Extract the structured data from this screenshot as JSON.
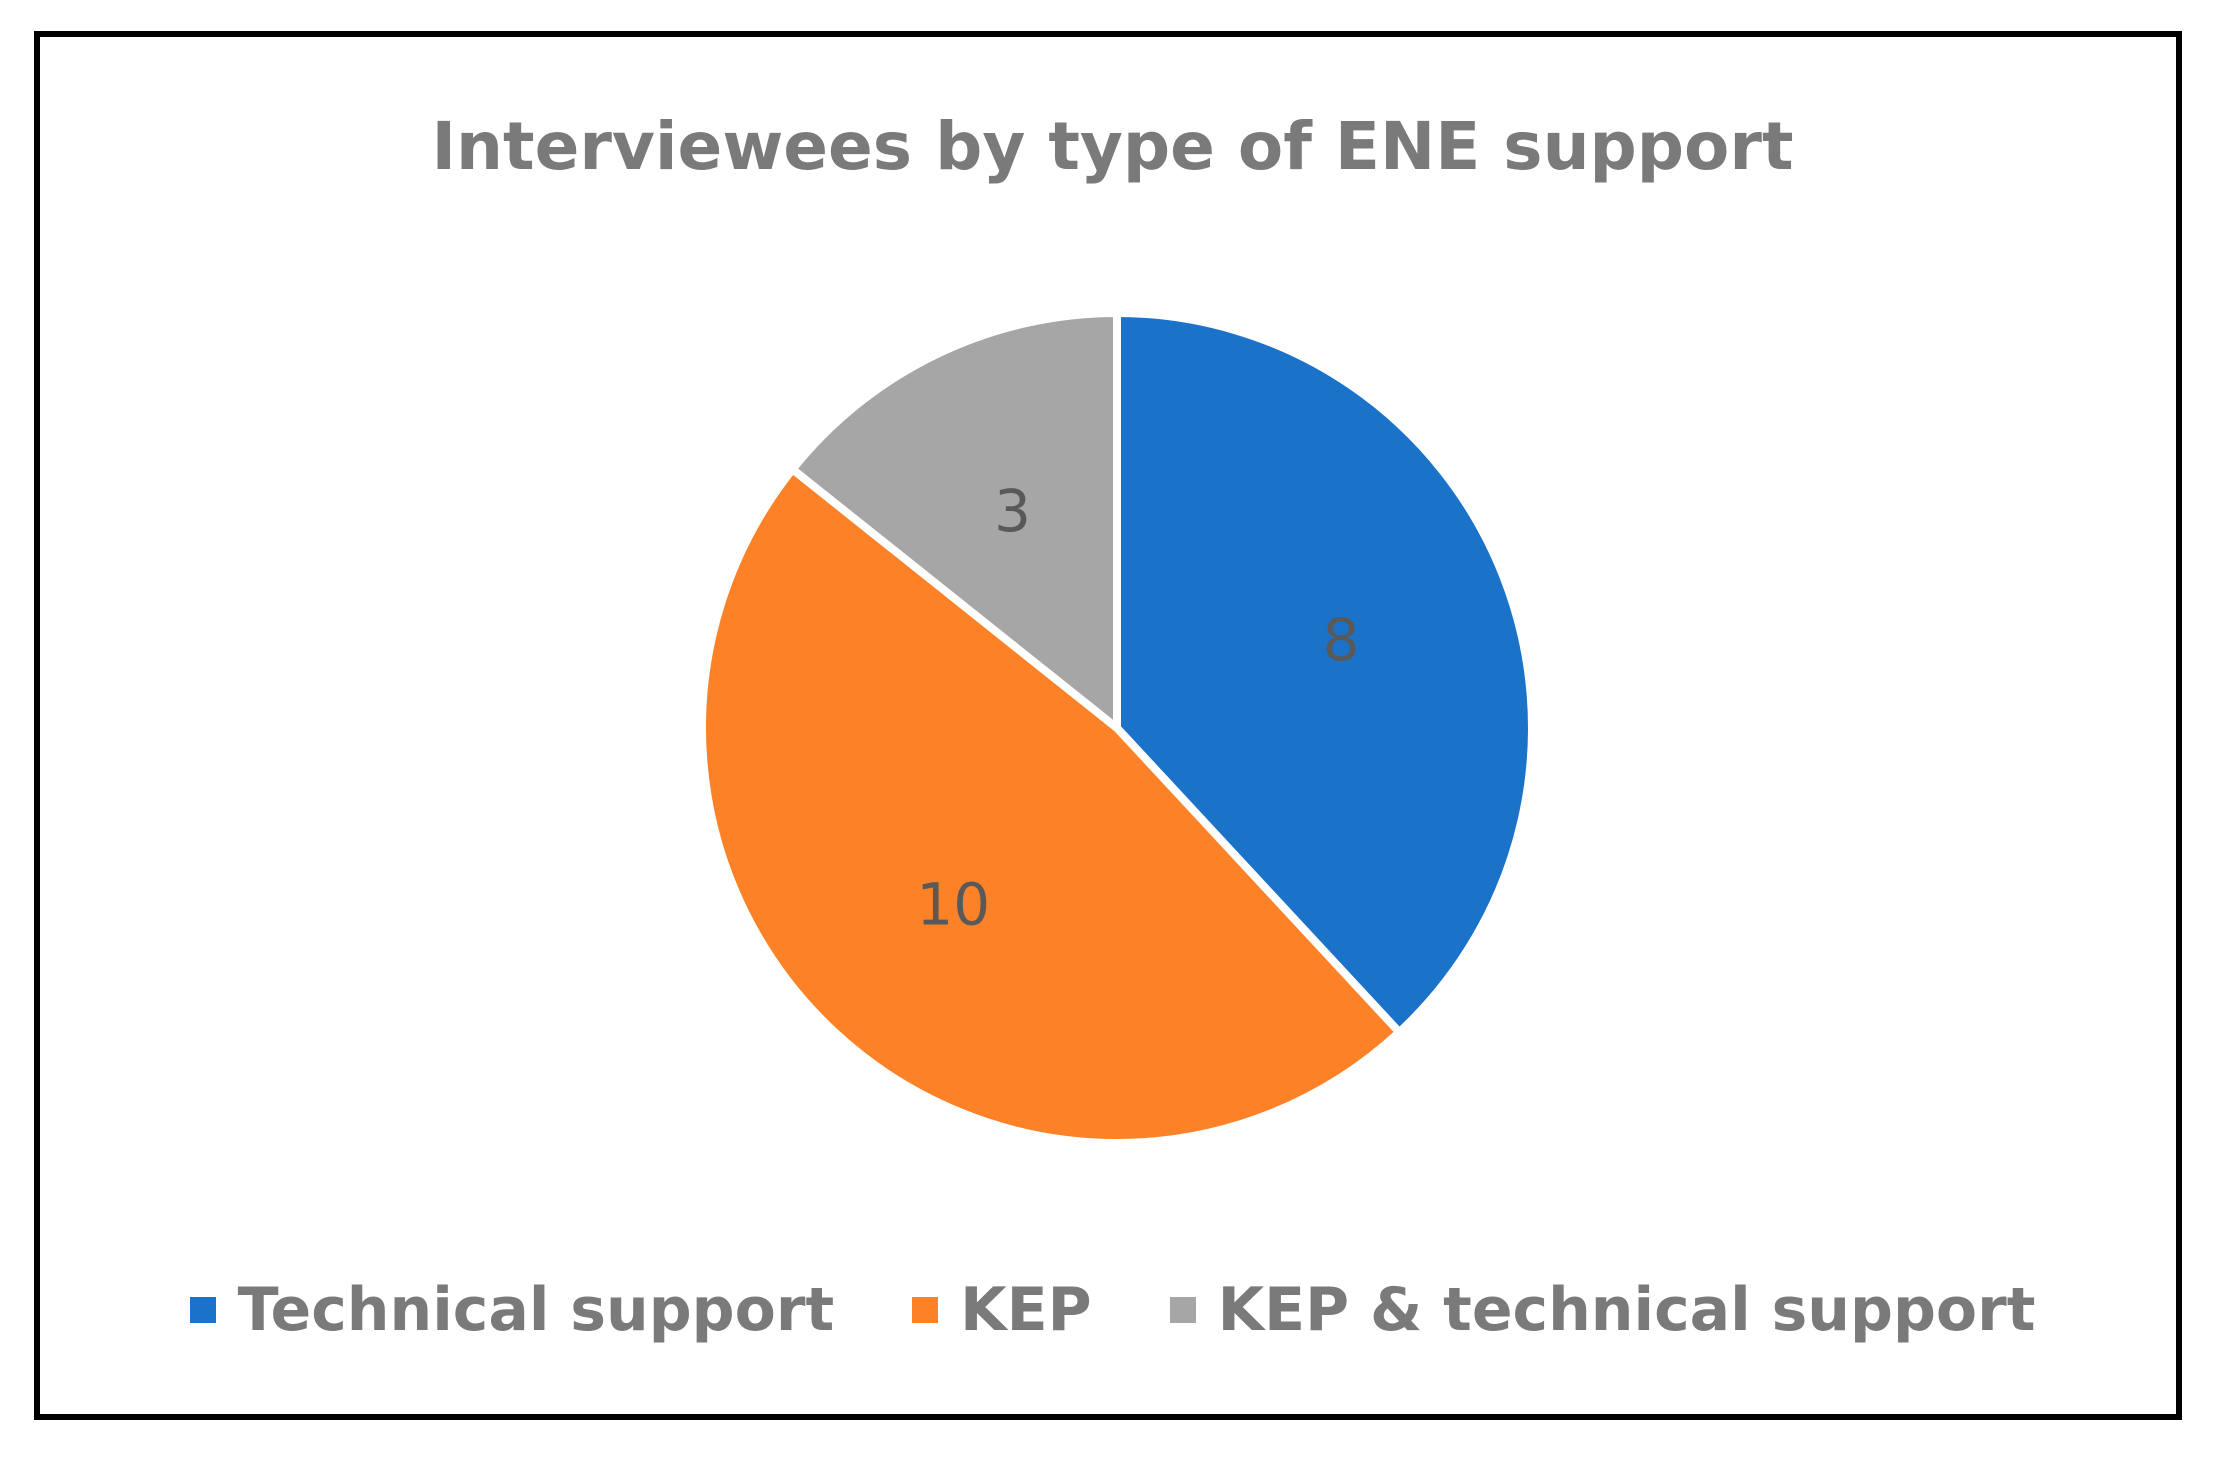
{
  "chart_data": {
    "type": "pie",
    "title": "Interviewees by type of ENE support",
    "categories": [
      "Technical support",
      "KEP",
      "KEP & technical support"
    ],
    "values": [
      8,
      10,
      3
    ],
    "data_labels": [
      "8",
      "10",
      "3"
    ],
    "colors": [
      "#1a73c8",
      "#fd8227",
      "#a6a6a6"
    ],
    "legend_position": "bottom",
    "start_angle": "12 o'clock",
    "direction": "clockwise"
  }
}
